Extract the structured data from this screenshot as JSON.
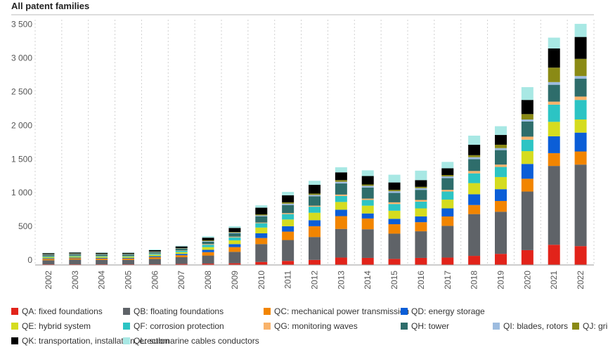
{
  "chart_data": {
    "type": "bar",
    "stacked": true,
    "title": "All patent families",
    "xlabel": "",
    "ylabel": "",
    "ylim": [
      0,
      3600
    ],
    "yticks": [
      0,
      500,
      1000,
      1500,
      2000,
      2500,
      3000,
      3500
    ],
    "ytick_labels": [
      "0",
      "500",
      "1 000",
      "1 500",
      "2 000",
      "2 500",
      "3 000",
      "3 500"
    ],
    "grid": "vertical dashed",
    "legend_position": "bottom",
    "categories": [
      "2002",
      "2003",
      "2004",
      "2005",
      "2006",
      "2007",
      "2008",
      "2009",
      "2010",
      "2011",
      "2012",
      "2013",
      "2014",
      "2015",
      "2016",
      "2017",
      "2018",
      "2019",
      "2020",
      "2021",
      "2022"
    ],
    "series": [
      {
        "name": "QA: fixed foundations",
        "color": "#e2231a",
        "values": [
          10,
          10,
          10,
          10,
          10,
          15,
          20,
          25,
          45,
          60,
          75,
          110,
          105,
          90,
          105,
          110,
          135,
          165,
          220,
          300,
          280
        ]
      },
      {
        "name": "QB: floating foundations",
        "color": "#5f6368",
        "values": [
          60,
          70,
          65,
          65,
          80,
          100,
          120,
          170,
          265,
          310,
          340,
          425,
          425,
          375,
          395,
          470,
          620,
          625,
          870,
          1170,
          1210
        ]
      },
      {
        "name": "QC: mechanical power transmission",
        "color": "#f28500",
        "values": [
          20,
          20,
          20,
          20,
          25,
          30,
          50,
          70,
          90,
          125,
          160,
          190,
          160,
          140,
          135,
          140,
          135,
          160,
          190,
          190,
          195
        ]
      },
      {
        "name": "QD: energy storage",
        "color": "#0b5ed7",
        "values": [
          10,
          10,
          10,
          10,
          15,
          20,
          35,
          45,
          70,
          80,
          90,
          95,
          75,
          80,
          85,
          120,
          160,
          175,
          220,
          250,
          280
        ]
      },
      {
        "name": "QE: hybrid system",
        "color": "#d5dc1f",
        "values": [
          15,
          15,
          15,
          15,
          20,
          25,
          40,
          55,
          85,
          100,
          110,
          115,
          115,
          120,
          120,
          130,
          165,
          180,
          190,
          215,
          195
        ]
      },
      {
        "name": "QF: corrosion protection",
        "color": "#2cc4c4",
        "values": [
          10,
          10,
          10,
          10,
          15,
          20,
          35,
          45,
          65,
          80,
          90,
          90,
          85,
          100,
          100,
          120,
          145,
          150,
          170,
          255,
          290
        ]
      },
      {
        "name": "QG: monitoring waves",
        "color": "#f9b36b",
        "values": [
          5,
          5,
          5,
          5,
          5,
          5,
          10,
          10,
          10,
          15,
          15,
          20,
          20,
          25,
          25,
          25,
          35,
          35,
          45,
          45,
          50
        ]
      },
      {
        "name": "QH: tower",
        "color": "#2e6d6b",
        "values": [
          20,
          20,
          20,
          20,
          20,
          25,
          35,
          50,
          90,
          120,
          140,
          165,
          165,
          140,
          150,
          175,
          175,
          215,
          225,
          250,
          265
        ]
      },
      {
        "name": "QI: blades, rotors",
        "color": "#9dbcdf",
        "values": [
          5,
          5,
          5,
          5,
          5,
          5,
          10,
          10,
          15,
          20,
          20,
          25,
          25,
          25,
          25,
          25,
          30,
          30,
          30,
          40,
          40
        ]
      },
      {
        "name": "QJ: grid",
        "color": "#8a8a15",
        "values": [
          5,
          5,
          5,
          5,
          5,
          5,
          10,
          10,
          15,
          20,
          20,
          25,
          20,
          20,
          20,
          20,
          30,
          50,
          80,
          215,
          255
        ]
      },
      {
        "name": "QK: transportation, installation, erection",
        "color": "#000000",
        "values": [
          15,
          15,
          15,
          15,
          20,
          25,
          40,
          60,
          100,
          105,
          130,
          115,
          125,
          110,
          100,
          100,
          155,
          145,
          210,
          285,
          325
        ]
      },
      {
        "name": "QL: submarine cables conductors",
        "color": "#a8e8e4",
        "values": [
          5,
          5,
          5,
          5,
          10,
          10,
          20,
          25,
          35,
          50,
          60,
          75,
          85,
          115,
          140,
          95,
          135,
          130,
          190,
          160,
          195
        ]
      }
    ]
  }
}
